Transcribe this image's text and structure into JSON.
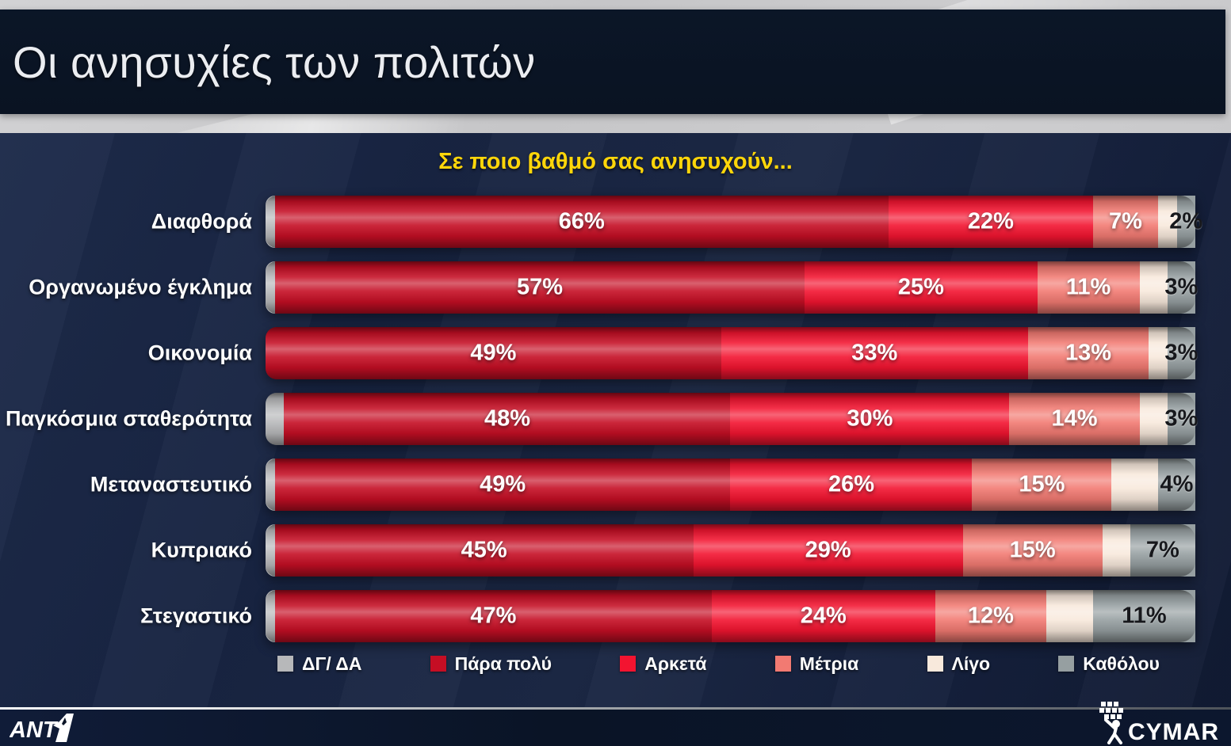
{
  "header": {
    "title": "Οι ανησυχίες των πολιτών"
  },
  "chart": {
    "subtitle": "Σε ποιο βαθμό σας ανησυχούν...",
    "subtitle_color": "#ffd60a"
  },
  "chart_data": {
    "type": "bar",
    "variant": "stacked-horizontal",
    "unit": "%",
    "xlim": [
      0,
      100
    ],
    "legend_position": "bottom",
    "categories": [
      "Διαφθορά",
      "Οργανωμένο έγκλημα",
      "Οικονομία",
      "Παγκόσμια σταθερότητα",
      "Μεταναστευτικό",
      "Κυπριακό",
      "Στεγαστικό"
    ],
    "series": [
      {
        "name": "ΔΓ/ ΔΑ",
        "color": "#b7b8ba",
        "show_value_labels": false,
        "label_style": "none",
        "values": [
          1,
          1,
          0,
          2,
          1,
          1,
          1
        ]
      },
      {
        "name": "Πάρα πολύ",
        "color": "#c50e24",
        "show_value_labels": true,
        "label_style": "light",
        "values": [
          66,
          57,
          49,
          48,
          49,
          45,
          47
        ]
      },
      {
        "name": "Αρκετά",
        "color": "#f31430",
        "show_value_labels": true,
        "label_style": "light",
        "values": [
          22,
          25,
          33,
          30,
          26,
          29,
          24
        ]
      },
      {
        "name": "Μέτρια",
        "color": "#f27a72",
        "show_value_labels": true,
        "label_style": "light",
        "values": [
          7,
          11,
          13,
          14,
          15,
          15,
          12
        ]
      },
      {
        "name": "Λίγο",
        "color": "#f8e9dc",
        "show_value_labels": false,
        "label_style": "none",
        "values": [
          2,
          3,
          2,
          3,
          5,
          3,
          5
        ]
      },
      {
        "name": "Καθόλου",
        "color": "#969fa1",
        "show_value_labels": true,
        "label_style": "dark",
        "values": [
          2,
          3,
          3,
          3,
          4,
          7,
          11
        ]
      }
    ]
  },
  "footer": {
    "brand_left": "ANT1",
    "brand_right": "CYMAR"
  }
}
